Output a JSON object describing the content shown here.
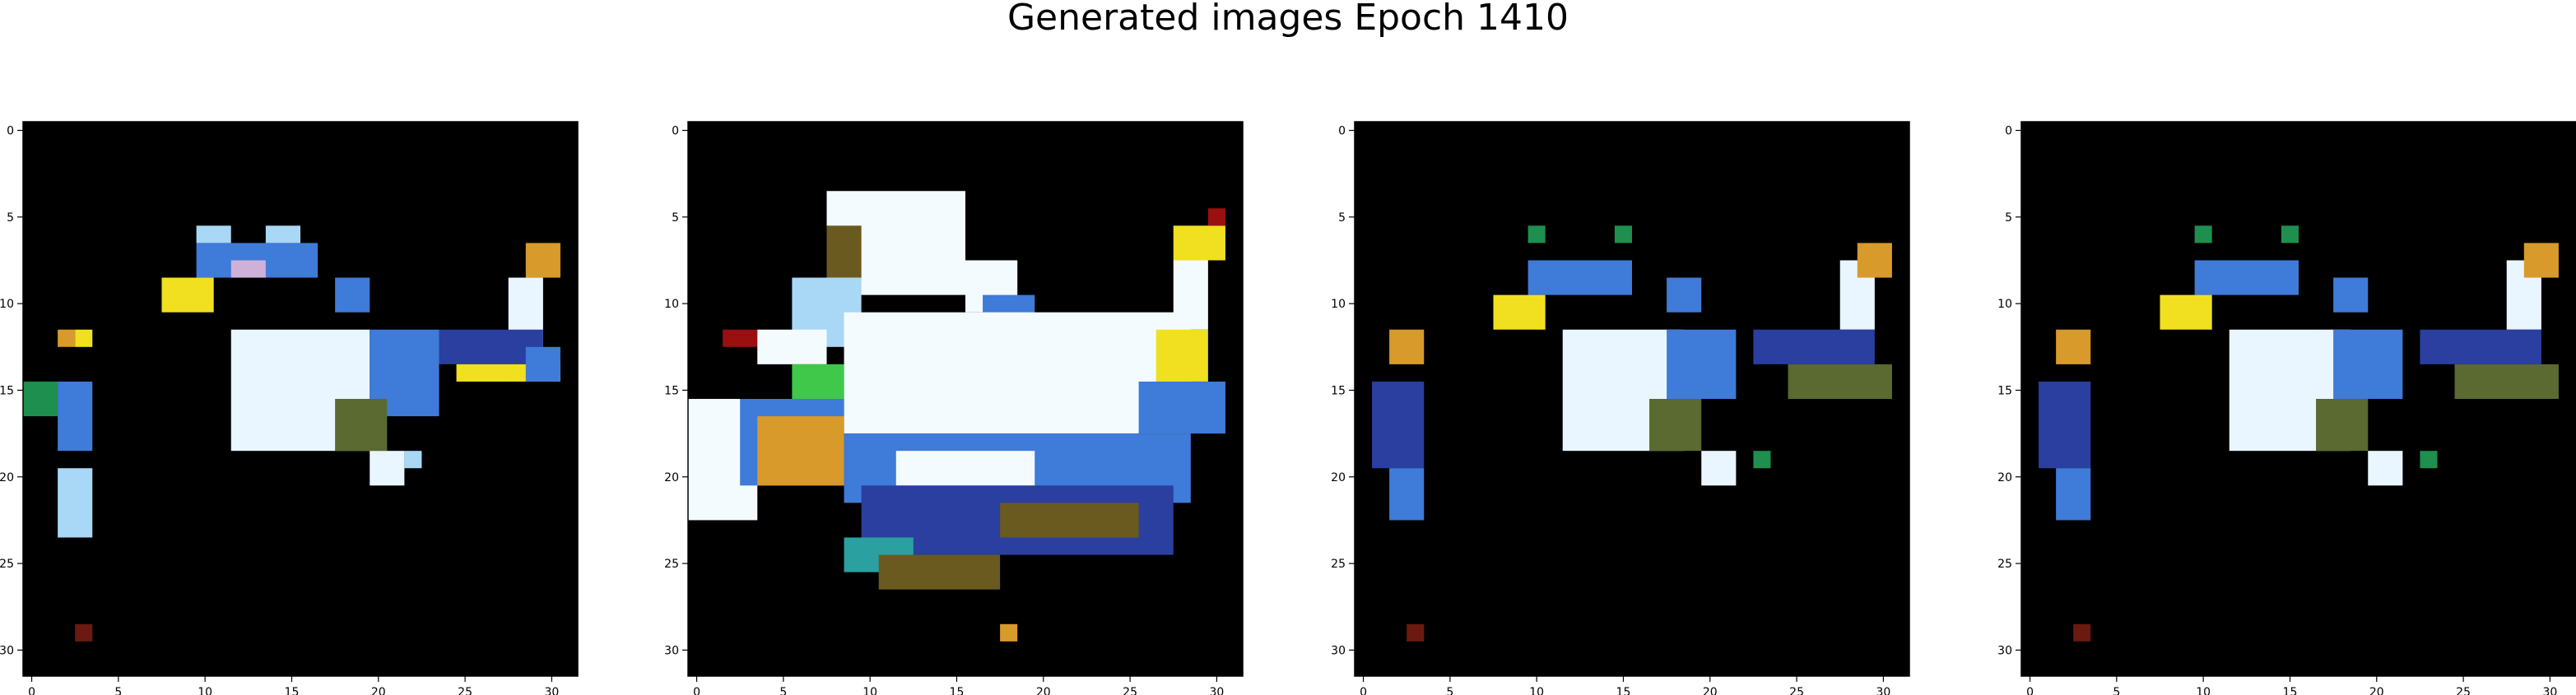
{
  "figure": {
    "title": "Generated images Epoch 1410",
    "colors": {
      "background": "#ffffff",
      "image_background": "#000000",
      "axes": "#000000"
    }
  },
  "panels": [
    {
      "name": "generated-image-1",
      "x_ticks": [
        "0",
        "5",
        "10",
        "15",
        "20",
        "25",
        "30"
      ],
      "y_ticks": [
        "0",
        "5",
        "10",
        "15",
        "20",
        "25",
        "30"
      ],
      "grid_size": 32,
      "palette": {
        "W": "#e9f6ff",
        "L": "#a8d8f5",
        "B": "#3f7bd8",
        "D": "#2a3fa0",
        "Y": "#f0e020",
        "O": "#d89a2a",
        "G": "#1e8f4e",
        "T": "#5a6a30",
        "R": "#6a1a10",
        "P": "#cfb0d8"
      },
      "blobs": [
        {
          "r": 6,
          "c": 10,
          "w": 2,
          "h": 1,
          "k": "L"
        },
        {
          "r": 6,
          "c": 14,
          "w": 2,
          "h": 1,
          "k": "L"
        },
        {
          "r": 7,
          "c": 10,
          "w": 7,
          "h": 2,
          "k": "B"
        },
        {
          "r": 8,
          "c": 12,
          "w": 2,
          "h": 1,
          "k": "P"
        },
        {
          "r": 9,
          "c": 8,
          "w": 3,
          "h": 2,
          "k": "Y"
        },
        {
          "r": 9,
          "c": 18,
          "w": 2,
          "h": 2,
          "k": "B"
        },
        {
          "r": 9,
          "c": 28,
          "w": 2,
          "h": 4,
          "k": "W"
        },
        {
          "r": 7,
          "c": 29,
          "w": 2,
          "h": 2,
          "k": "O"
        },
        {
          "r": 12,
          "c": 12,
          "w": 8,
          "h": 7,
          "k": "W"
        },
        {
          "r": 12,
          "c": 20,
          "w": 4,
          "h": 5,
          "k": "B"
        },
        {
          "r": 12,
          "c": 24,
          "w": 6,
          "h": 2,
          "k": "D"
        },
        {
          "r": 14,
          "c": 25,
          "w": 6,
          "h": 1,
          "k": "Y"
        },
        {
          "r": 13,
          "c": 29,
          "w": 2,
          "h": 2,
          "k": "B"
        },
        {
          "r": 16,
          "c": 18,
          "w": 3,
          "h": 3,
          "k": "T"
        },
        {
          "r": 19,
          "c": 20,
          "w": 2,
          "h": 2,
          "k": "W"
        },
        {
          "r": 19,
          "c": 22,
          "w": 1,
          "h": 1,
          "k": "L"
        },
        {
          "r": 12,
          "c": 2,
          "w": 1,
          "h": 1,
          "k": "O"
        },
        {
          "r": 12,
          "c": 3,
          "w": 1,
          "h": 1,
          "k": "Y"
        },
        {
          "r": 15,
          "c": 0,
          "w": 2,
          "h": 2,
          "k": "G"
        },
        {
          "r": 15,
          "c": 2,
          "w": 2,
          "h": 4,
          "k": "B"
        },
        {
          "r": 20,
          "c": 2,
          "w": 2,
          "h": 4,
          "k": "L"
        },
        {
          "r": 29,
          "c": 3,
          "w": 1,
          "h": 1,
          "k": "R"
        }
      ]
    },
    {
      "name": "generated-image-2",
      "x_ticks": [
        "0",
        "5",
        "10",
        "15",
        "20",
        "25",
        "30"
      ],
      "y_ticks": [
        "0",
        "5",
        "10",
        "15",
        "20",
        "25",
        "30"
      ],
      "grid_size": 32,
      "palette": {
        "W": "#f4fbff",
        "L": "#a8d8f5",
        "B": "#3f7bd8",
        "D": "#2a3fa0",
        "Y": "#f0e020",
        "O": "#d89a2a",
        "G": "#3fc84a",
        "T": "#6a5a20",
        "R": "#9a1010",
        "C": "#2aa0a0"
      },
      "blobs": [
        {
          "r": 4,
          "c": 8,
          "w": 8,
          "h": 6,
          "k": "W"
        },
        {
          "r": 6,
          "c": 8,
          "w": 2,
          "h": 3,
          "k": "T"
        },
        {
          "r": 8,
          "c": 16,
          "w": 3,
          "h": 3,
          "k": "W"
        },
        {
          "r": 9,
          "c": 6,
          "w": 4,
          "h": 4,
          "k": "L"
        },
        {
          "r": 10,
          "c": 17,
          "w": 3,
          "h": 2,
          "k": "B"
        },
        {
          "r": 8,
          "c": 28,
          "w": 2,
          "h": 4,
          "k": "W"
        },
        {
          "r": 6,
          "c": 28,
          "w": 3,
          "h": 2,
          "k": "Y"
        },
        {
          "r": 5,
          "c": 30,
          "w": 1,
          "h": 1,
          "k": "R"
        },
        {
          "r": 11,
          "c": 9,
          "w": 20,
          "h": 7,
          "k": "W"
        },
        {
          "r": 12,
          "c": 2,
          "w": 2,
          "h": 1,
          "k": "R"
        },
        {
          "r": 12,
          "c": 4,
          "w": 4,
          "h": 2,
          "k": "W"
        },
        {
          "r": 12,
          "c": 27,
          "w": 3,
          "h": 3,
          "k": "Y"
        },
        {
          "r": 15,
          "c": 26,
          "w": 5,
          "h": 3,
          "k": "B"
        },
        {
          "r": 16,
          "c": 0,
          "w": 4,
          "h": 7,
          "k": "W"
        },
        {
          "r": 14,
          "c": 6,
          "w": 3,
          "h": 3,
          "k": "G"
        },
        {
          "r": 16,
          "c": 3,
          "w": 6,
          "h": 5,
          "k": "B"
        },
        {
          "r": 17,
          "c": 4,
          "w": 5,
          "h": 4,
          "k": "O"
        },
        {
          "r": 18,
          "c": 9,
          "w": 20,
          "h": 4,
          "k": "B"
        },
        {
          "r": 19,
          "c": 12,
          "w": 8,
          "h": 2,
          "k": "W"
        },
        {
          "r": 21,
          "c": 10,
          "w": 18,
          "h": 4,
          "k": "D"
        },
        {
          "r": 22,
          "c": 18,
          "w": 8,
          "h": 2,
          "k": "T"
        },
        {
          "r": 24,
          "c": 9,
          "w": 4,
          "h": 2,
          "k": "C"
        },
        {
          "r": 25,
          "c": 11,
          "w": 7,
          "h": 2,
          "k": "T"
        },
        {
          "r": 29,
          "c": 18,
          "w": 1,
          "h": 1,
          "k": "O"
        }
      ]
    },
    {
      "name": "generated-image-3",
      "x_ticks": [
        "0",
        "5",
        "10",
        "15",
        "20",
        "25",
        "30"
      ],
      "y_ticks": [
        "0",
        "5",
        "10",
        "15",
        "20",
        "25",
        "30"
      ],
      "grid_size": 32,
      "palette": {
        "W": "#e9f6ff",
        "L": "#a8d8f5",
        "B": "#3f7bd8",
        "D": "#2a3fa0",
        "Y": "#f0e020",
        "O": "#d89a2a",
        "G": "#1e8f4e",
        "T": "#5a6a30",
        "R": "#6a1a10",
        "P": "#cfb0d8"
      },
      "blobs": [
        {
          "r": 6,
          "c": 10,
          "w": 1,
          "h": 1,
          "k": "G"
        },
        {
          "r": 6,
          "c": 15,
          "w": 1,
          "h": 1,
          "k": "G"
        },
        {
          "r": 8,
          "c": 10,
          "w": 6,
          "h": 2,
          "k": "B"
        },
        {
          "r": 10,
          "c": 8,
          "w": 3,
          "h": 2,
          "k": "Y"
        },
        {
          "r": 9,
          "c": 18,
          "w": 2,
          "h": 2,
          "k": "B"
        },
        {
          "r": 8,
          "c": 28,
          "w": 2,
          "h": 4,
          "k": "W"
        },
        {
          "r": 7,
          "c": 29,
          "w": 2,
          "h": 2,
          "k": "O"
        },
        {
          "r": 12,
          "c": 12,
          "w": 7,
          "h": 7,
          "k": "W"
        },
        {
          "r": 12,
          "c": 18,
          "w": 4,
          "h": 4,
          "k": "B"
        },
        {
          "r": 12,
          "c": 23,
          "w": 7,
          "h": 2,
          "k": "D"
        },
        {
          "r": 14,
          "c": 25,
          "w": 6,
          "h": 2,
          "k": "T"
        },
        {
          "r": 16,
          "c": 17,
          "w": 3,
          "h": 3,
          "k": "T"
        },
        {
          "r": 19,
          "c": 20,
          "w": 2,
          "h": 2,
          "k": "W"
        },
        {
          "r": 19,
          "c": 23,
          "w": 1,
          "h": 1,
          "k": "G"
        },
        {
          "r": 12,
          "c": 2,
          "w": 2,
          "h": 2,
          "k": "O"
        },
        {
          "r": 15,
          "c": 1,
          "w": 3,
          "h": 5,
          "k": "D"
        },
        {
          "r": 20,
          "c": 2,
          "w": 2,
          "h": 3,
          "k": "B"
        },
        {
          "r": 29,
          "c": 3,
          "w": 1,
          "h": 1,
          "k": "R"
        }
      ]
    },
    {
      "name": "generated-image-4",
      "x_ticks": [
        "0",
        "5",
        "10",
        "15",
        "20",
        "25",
        "30"
      ],
      "y_ticks": [
        "0",
        "5",
        "10",
        "15",
        "20",
        "25",
        "30"
      ],
      "grid_size": 32,
      "palette": {
        "W": "#e9f6ff",
        "L": "#a8d8f5",
        "B": "#3f7bd8",
        "D": "#2a3fa0",
        "Y": "#f0e020",
        "O": "#d89a2a",
        "G": "#1e8f4e",
        "T": "#5a6a30",
        "R": "#6a1a10",
        "P": "#cfb0d8"
      },
      "blobs": [
        {
          "r": 6,
          "c": 10,
          "w": 1,
          "h": 1,
          "k": "G"
        },
        {
          "r": 6,
          "c": 15,
          "w": 1,
          "h": 1,
          "k": "G"
        },
        {
          "r": 8,
          "c": 10,
          "w": 6,
          "h": 2,
          "k": "B"
        },
        {
          "r": 10,
          "c": 8,
          "w": 3,
          "h": 2,
          "k": "Y"
        },
        {
          "r": 9,
          "c": 18,
          "w": 2,
          "h": 2,
          "k": "B"
        },
        {
          "r": 8,
          "c": 28,
          "w": 2,
          "h": 4,
          "k": "W"
        },
        {
          "r": 7,
          "c": 29,
          "w": 2,
          "h": 2,
          "k": "O"
        },
        {
          "r": 12,
          "c": 12,
          "w": 7,
          "h": 7,
          "k": "W"
        },
        {
          "r": 12,
          "c": 18,
          "w": 4,
          "h": 4,
          "k": "B"
        },
        {
          "r": 12,
          "c": 23,
          "w": 7,
          "h": 2,
          "k": "D"
        },
        {
          "r": 14,
          "c": 25,
          "w": 6,
          "h": 2,
          "k": "T"
        },
        {
          "r": 16,
          "c": 17,
          "w": 3,
          "h": 3,
          "k": "T"
        },
        {
          "r": 19,
          "c": 20,
          "w": 2,
          "h": 2,
          "k": "W"
        },
        {
          "r": 19,
          "c": 23,
          "w": 1,
          "h": 1,
          "k": "G"
        },
        {
          "r": 12,
          "c": 2,
          "w": 2,
          "h": 2,
          "k": "O"
        },
        {
          "r": 15,
          "c": 1,
          "w": 3,
          "h": 5,
          "k": "D"
        },
        {
          "r": 20,
          "c": 2,
          "w": 2,
          "h": 3,
          "k": "B"
        },
        {
          "r": 29,
          "c": 3,
          "w": 1,
          "h": 1,
          "k": "R"
        }
      ]
    }
  ]
}
